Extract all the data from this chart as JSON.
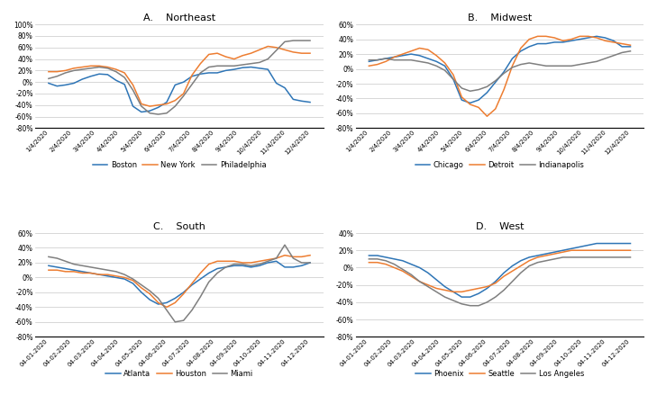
{
  "northeast": {
    "title": "A.    Northeast",
    "cities": [
      "Boston",
      "New York",
      "Philadelphia"
    ],
    "colors": [
      "#2e75b6",
      "#ed7d31",
      "#7f7f7f"
    ],
    "x_labels": [
      "1/4/2020",
      "2/4/2020",
      "3/4/2020",
      "4/4/2020",
      "5/4/2020",
      "6/4/2020",
      "7/4/2020",
      "8/4/2020",
      "9/4/2020",
      "10/4/2020",
      "11/4/2020",
      "12/4/2020"
    ],
    "ylim": [
      -0.8,
      1.0
    ],
    "yticks": [
      -0.8,
      -0.6,
      -0.4,
      -0.2,
      0.0,
      0.2,
      0.4,
      0.6,
      0.8,
      1.0
    ],
    "Boston": [
      -0.02,
      -0.07,
      -0.05,
      -0.02,
      0.05,
      0.1,
      0.14,
      0.13,
      0.03,
      -0.04,
      -0.42,
      -0.52,
      -0.5,
      -0.44,
      -0.35,
      -0.05,
      0.0,
      0.1,
      0.14,
      0.16,
      0.16,
      0.2,
      0.22,
      0.25,
      0.26,
      0.24,
      0.22,
      -0.02,
      -0.1,
      -0.3,
      -0.33,
      -0.35
    ],
    "New York": [
      0.18,
      0.18,
      0.2,
      0.24,
      0.26,
      0.28,
      0.28,
      0.26,
      0.22,
      0.16,
      -0.05,
      -0.38,
      -0.42,
      -0.4,
      -0.38,
      -0.32,
      -0.2,
      0.12,
      0.32,
      0.48,
      0.5,
      0.44,
      0.4,
      0.46,
      0.5,
      0.56,
      0.62,
      0.6,
      0.56,
      0.52,
      0.5,
      0.5
    ],
    "Philadelphia": [
      0.06,
      0.1,
      0.16,
      0.2,
      0.22,
      0.24,
      0.26,
      0.24,
      0.18,
      0.08,
      -0.14,
      -0.42,
      -0.54,
      -0.56,
      -0.54,
      -0.42,
      -0.24,
      -0.04,
      0.16,
      0.26,
      0.28,
      0.28,
      0.28,
      0.3,
      0.32,
      0.34,
      0.4,
      0.55,
      0.7,
      0.72,
      0.72,
      0.72
    ]
  },
  "midwest": {
    "title": "B.    Midwest",
    "cities": [
      "Chicago",
      "Detroit",
      "Indianapolis"
    ],
    "colors": [
      "#2e75b6",
      "#ed7d31",
      "#7f7f7f"
    ],
    "x_labels": [
      "1/4/2020",
      "2/4/2020",
      "3/4/2020",
      "4/4/2020",
      "5/4/2020",
      "6/4/2020",
      "7/4/2020",
      "8/4/2020",
      "9/4/2020",
      "10/4/2020",
      "11/4/2020",
      "12/4/2020"
    ],
    "ylim": [
      -0.8,
      0.6
    ],
    "yticks": [
      -0.8,
      -0.6,
      -0.4,
      -0.2,
      0.0,
      0.2,
      0.4,
      0.6
    ],
    "Chicago": [
      0.1,
      0.12,
      0.14,
      0.16,
      0.18,
      0.2,
      0.18,
      0.14,
      0.1,
      0.04,
      -0.14,
      -0.42,
      -0.46,
      -0.42,
      -0.32,
      -0.18,
      -0.04,
      0.14,
      0.24,
      0.3,
      0.34,
      0.34,
      0.36,
      0.36,
      0.38,
      0.4,
      0.42,
      0.44,
      0.42,
      0.38,
      0.3,
      0.3
    ],
    "Detroit": [
      0.04,
      0.06,
      0.1,
      0.16,
      0.2,
      0.24,
      0.28,
      0.26,
      0.18,
      0.08,
      -0.08,
      -0.38,
      -0.48,
      -0.52,
      -0.64,
      -0.54,
      -0.28,
      0.04,
      0.28,
      0.4,
      0.44,
      0.44,
      0.42,
      0.38,
      0.4,
      0.44,
      0.44,
      0.42,
      0.38,
      0.36,
      0.34,
      0.32
    ],
    "Indianapolis": [
      0.12,
      0.12,
      0.14,
      0.12,
      0.12,
      0.12,
      0.1,
      0.08,
      0.04,
      -0.02,
      -0.14,
      -0.26,
      -0.3,
      -0.28,
      -0.24,
      -0.16,
      -0.06,
      0.02,
      0.06,
      0.08,
      0.06,
      0.04,
      0.04,
      0.04,
      0.04,
      0.06,
      0.08,
      0.1,
      0.14,
      0.18,
      0.22,
      0.24
    ]
  },
  "south": {
    "title": "C.    South",
    "cities": [
      "Atlanta",
      "Houston",
      "Miami"
    ],
    "colors": [
      "#2e75b6",
      "#ed7d31",
      "#7f7f7f"
    ],
    "x_labels": [
      "04-01-2020",
      "04-02-2020",
      "04-03-2020",
      "04-04-2020",
      "04-05-2020",
      "04-06-2020",
      "04-07-2020",
      "04-08-2020",
      "04-09-2020",
      "04-10-2020",
      "04-11-2020",
      "04-12-2020"
    ],
    "ylim": [
      -0.8,
      0.6
    ],
    "yticks": [
      -0.8,
      -0.6,
      -0.4,
      -0.2,
      0.0,
      0.2,
      0.4,
      0.6
    ],
    "Atlanta": [
      0.16,
      0.14,
      0.12,
      0.1,
      0.08,
      0.06,
      0.04,
      0.02,
      0.0,
      -0.02,
      -0.08,
      -0.2,
      -0.3,
      -0.36,
      -0.34,
      -0.28,
      -0.2,
      -0.1,
      -0.02,
      0.06,
      0.12,
      0.14,
      0.16,
      0.16,
      0.14,
      0.16,
      0.2,
      0.22,
      0.14,
      0.14,
      0.16,
      0.2
    ],
    "Houston": [
      0.1,
      0.1,
      0.08,
      0.08,
      0.06,
      0.06,
      0.04,
      0.04,
      0.02,
      0.0,
      -0.04,
      -0.14,
      -0.22,
      -0.34,
      -0.4,
      -0.34,
      -0.22,
      -0.08,
      0.06,
      0.18,
      0.22,
      0.22,
      0.22,
      0.2,
      0.2,
      0.22,
      0.24,
      0.26,
      0.3,
      0.28,
      0.28,
      0.3
    ],
    "Miami": [
      0.28,
      0.26,
      0.22,
      0.18,
      0.16,
      0.14,
      0.12,
      0.1,
      0.08,
      0.04,
      -0.02,
      -0.1,
      -0.18,
      -0.28,
      -0.44,
      -0.6,
      -0.58,
      -0.44,
      -0.26,
      -0.06,
      0.06,
      0.14,
      0.18,
      0.18,
      0.16,
      0.18,
      0.22,
      0.26,
      0.44,
      0.26,
      0.2,
      0.2
    ]
  },
  "west": {
    "title": "D.    West",
    "cities": [
      "Phoenix",
      "Seattle",
      "Los Angeles"
    ],
    "colors": [
      "#2e75b6",
      "#ed7d31",
      "#7f7f7f"
    ],
    "x_labels": [
      "04-01-2020",
      "04-02-2020",
      "04-03-2020",
      "04-04-2020",
      "04-05-2020",
      "04-06-2020",
      "04-07-2020",
      "04-08-2020",
      "04-09-2020",
      "04-10-2020",
      "04-11-2020",
      "04-12-2020"
    ],
    "ylim": [
      -0.8,
      0.4
    ],
    "yticks": [
      -0.8,
      -0.6,
      -0.4,
      -0.2,
      0.0,
      0.2,
      0.4
    ],
    "Phoenix": [
      0.14,
      0.14,
      0.12,
      0.1,
      0.08,
      0.04,
      0.0,
      -0.06,
      -0.14,
      -0.22,
      -0.28,
      -0.34,
      -0.34,
      -0.3,
      -0.24,
      -0.16,
      -0.06,
      0.02,
      0.08,
      0.12,
      0.14,
      0.16,
      0.18,
      0.2,
      0.22,
      0.24,
      0.26,
      0.28,
      0.28,
      0.28,
      0.28,
      0.28
    ],
    "Seattle": [
      0.06,
      0.06,
      0.04,
      0.0,
      -0.04,
      -0.1,
      -0.16,
      -0.2,
      -0.24,
      -0.26,
      -0.28,
      -0.28,
      -0.26,
      -0.24,
      -0.22,
      -0.18,
      -0.1,
      -0.04,
      0.02,
      0.08,
      0.12,
      0.14,
      0.16,
      0.18,
      0.2,
      0.2,
      0.2,
      0.2,
      0.2,
      0.2,
      0.2,
      0.2
    ],
    "Los Angeles": [
      0.1,
      0.1,
      0.08,
      0.04,
      -0.02,
      -0.08,
      -0.16,
      -0.22,
      -0.28,
      -0.34,
      -0.38,
      -0.42,
      -0.44,
      -0.44,
      -0.4,
      -0.34,
      -0.26,
      -0.16,
      -0.06,
      0.02,
      0.06,
      0.08,
      0.1,
      0.12,
      0.12,
      0.12,
      0.12,
      0.12,
      0.12,
      0.12,
      0.12,
      0.12
    ]
  },
  "figsize": [
    7.29,
    4.59
  ],
  "dpi": 100
}
